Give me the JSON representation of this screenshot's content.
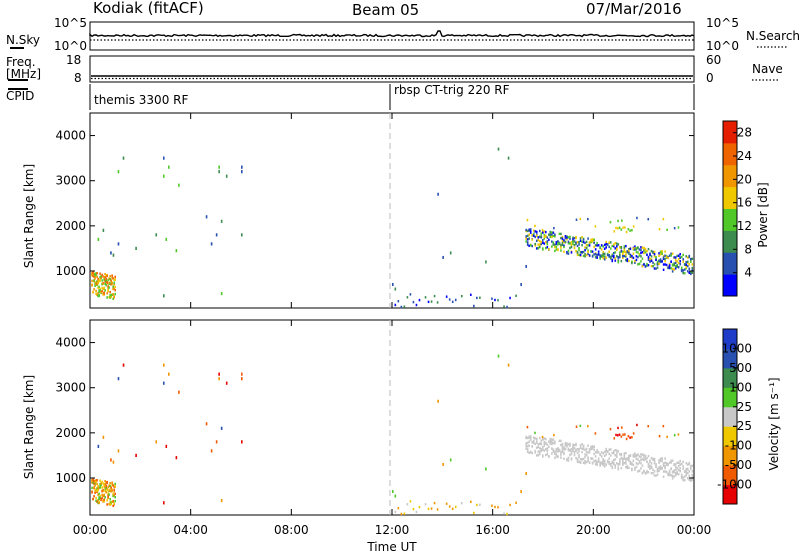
{
  "header": {
    "station": "Kodiak (fitACF)",
    "beam": "Beam 05",
    "date": "07/Mar/2016"
  },
  "top_panels": {
    "nsky_label": "N.Sky",
    "nsky_ticks": [
      "10^5",
      "10^0"
    ],
    "nsky_right_ticks": [
      "10^5",
      "10^0"
    ],
    "nsearch_label": "N.Search",
    "freq_label_1": "Freq.",
    "freq_label_2": "[MHz]",
    "freq_ticks": [
      "18",
      "8"
    ],
    "nave_label": "Nave",
    "nave_ticks": [
      "60",
      "0"
    ],
    "cpid_label": "CPID",
    "cpid_segments": [
      {
        "label": "themis 3300 RF",
        "start_hour": 0
      },
      {
        "label": "rbsp CT-trig 220 RF",
        "start_hour": 12
      }
    ]
  },
  "colors": {
    "power_scale": [
      "#0000ff",
      "#2850b0",
      "#3c8c50",
      "#50c828",
      "#f0c800",
      "#f09600",
      "#f06400",
      "#e61e00"
    ],
    "velocity_scale": [
      "#e60000",
      "#f05a00",
      "#f09600",
      "#f0c800",
      "#c8c8c8",
      "#50c828",
      "#3c8c50",
      "#2850b0",
      "#1e3cc8"
    ],
    "velocity_low": "#c8c8c8"
  },
  "chart_data": [
    {
      "type": "heatmap",
      "name": "power",
      "xlabel": "",
      "ylabel": "Slant Range [km]",
      "x_range_hours": [
        0,
        24
      ],
      "ylim": [
        180,
        4500
      ],
      "y_ticks": [
        "1000",
        "2000",
        "3000",
        "4000"
      ],
      "colorbar": {
        "label": "Power [dB]",
        "ticks": [
          "4",
          "8",
          "12",
          "16",
          "20",
          "24",
          "28"
        ],
        "range": [
          0,
          30
        ]
      },
      "marker_line_hour": 12
    },
    {
      "type": "heatmap",
      "name": "velocity",
      "xlabel": "Time UT",
      "ylabel": "Slant Range [km]",
      "x_range_hours": [
        0,
        24
      ],
      "x_ticks": [
        "00:00",
        "04:00",
        "08:00",
        "12:00",
        "16:00",
        "20:00",
        "00:00"
      ],
      "ylim": [
        180,
        4500
      ],
      "y_ticks": [
        "1000",
        "2000",
        "3000",
        "4000"
      ],
      "colorbar": {
        "label": "Velocity [m s⁻¹]",
        "ticks": [
          "1000",
          "500",
          "100",
          "25",
          "-25",
          "-100",
          "-500",
          "-1000"
        ]
      },
      "marker_line_hour": 12
    }
  ]
}
